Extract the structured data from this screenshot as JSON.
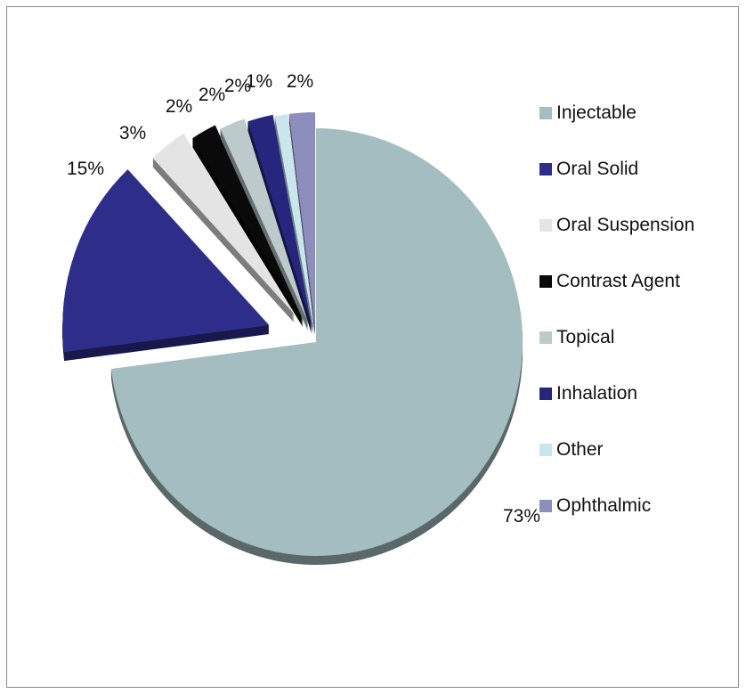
{
  "chart_data": {
    "type": "pie",
    "title": "",
    "legend_placement": "right",
    "exploded": true,
    "three_d": true,
    "slices": [
      {
        "name": "Injectable",
        "value": 73,
        "label": "73%",
        "color": "#a3bdc0"
      },
      {
        "name": "Oral Solid",
        "value": 15,
        "label": "15%",
        "color": "#2e2e8a"
      },
      {
        "name": "Oral Suspension",
        "value": 3,
        "label": "3%",
        "color": "#e4e4e4"
      },
      {
        "name": "Contrast Agent",
        "value": 2,
        "label": "2%",
        "color": "#0a0a0a"
      },
      {
        "name": "Topical",
        "value": 2,
        "label": "2%",
        "color": "#bccacc"
      },
      {
        "name": "Inhalation",
        "value": 2,
        "label": "2%",
        "color": "#26267e"
      },
      {
        "name": "Other",
        "value": 1,
        "label": "1%",
        "color": "#c8e6ec"
      },
      {
        "name": "Ophthalmic",
        "value": 2,
        "label": "2%",
        "color": "#8e8ebe"
      }
    ]
  }
}
